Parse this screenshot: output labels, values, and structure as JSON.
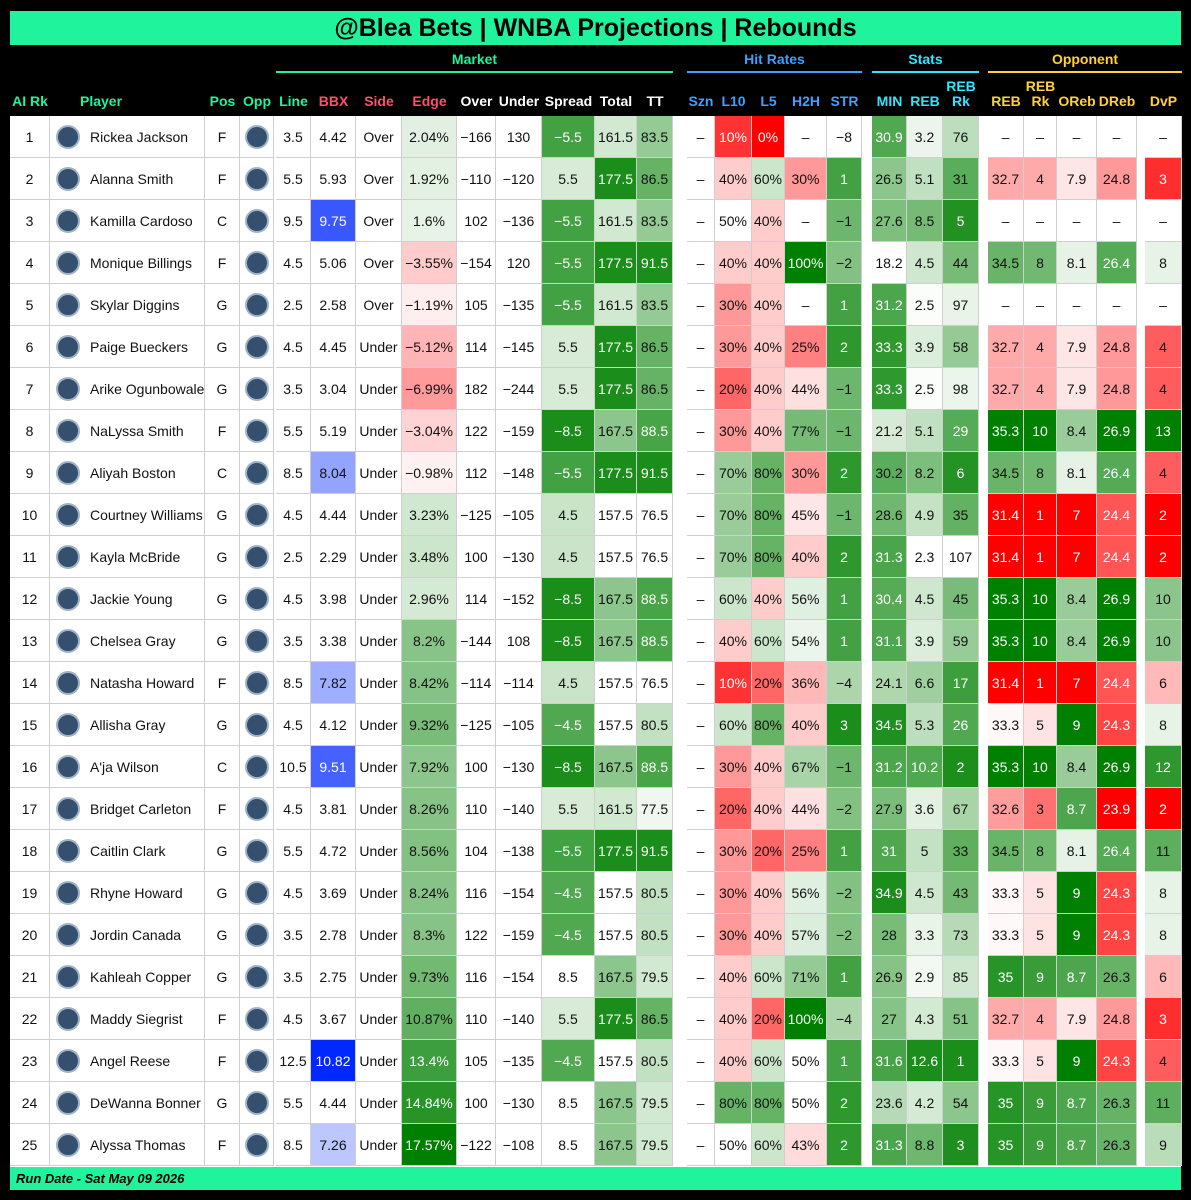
{
  "header": {
    "title": "@Blea Bets | WNBA Projections | Rebounds"
  },
  "table": {
    "groups": [
      "Market",
      "Hit Rates",
      "Stats",
      "Opponent"
    ],
    "columns": [
      "AI Rk",
      "Player",
      "Pos",
      "Opp",
      "Line",
      "BBX",
      "Side",
      "Edge",
      "Over",
      "Under",
      "Spread",
      "Total",
      "TT",
      "Szn",
      "L10",
      "L5",
      "H2H",
      "STR",
      "MIN",
      "REB",
      "REB Rk",
      "REB",
      "REB Rk",
      "OReb",
      "DReb",
      "DvP"
    ],
    "rows": [
      [
        1,
        "Rickea Jackson",
        "F",
        null,
        3.5,
        4.42,
        "Over",
        "2.04%",
        "−166",
        130,
        "−5.5",
        161.5,
        83.5,
        "–",
        "10%",
        "0%",
        "–",
        "−8",
        30.9,
        3.2,
        76,
        "–",
        "–",
        "–",
        "–",
        "–"
      ],
      [
        2,
        "Alanna Smith",
        "F",
        null,
        5.5,
        5.93,
        "Over",
        "1.92%",
        "−110",
        "−120",
        5.5,
        177.5,
        86.5,
        "–",
        "40%",
        "60%",
        "30%",
        1,
        26.5,
        5.1,
        31,
        32.7,
        4,
        7.9,
        24.8,
        3
      ],
      [
        3,
        "Kamilla Cardoso",
        "C",
        null,
        9.5,
        9.75,
        "Over",
        "1.6%",
        102,
        "−136",
        "−5.5",
        161.5,
        83.5,
        "–",
        "50%",
        "40%",
        "–",
        "−1",
        27.6,
        8.5,
        5,
        "–",
        "–",
        "–",
        "–",
        "–"
      ],
      [
        4,
        "Monique Billings",
        "F",
        null,
        4.5,
        5.06,
        "Over",
        "−3.55%",
        "−154",
        120,
        "−5.5",
        177.5,
        91.5,
        "–",
        "40%",
        "40%",
        "100%",
        "−2",
        18.2,
        4.5,
        44,
        34.5,
        8,
        8.1,
        26.4,
        8
      ],
      [
        5,
        "Skylar Diggins",
        "G",
        null,
        2.5,
        2.58,
        "Over",
        "−1.19%",
        105,
        "−135",
        "−5.5",
        161.5,
        83.5,
        "–",
        "30%",
        "40%",
        "–",
        1,
        31.2,
        2.5,
        97,
        "–",
        "–",
        "–",
        "–",
        "–"
      ],
      [
        6,
        "Paige Bueckers",
        "G",
        null,
        4.5,
        4.45,
        "Under",
        "−5.12%",
        114,
        "−145",
        5.5,
        177.5,
        86.5,
        "–",
        "30%",
        "40%",
        "25%",
        2,
        33.3,
        3.9,
        58,
        32.7,
        4,
        7.9,
        24.8,
        4
      ],
      [
        7,
        "Arike Ogunbowale",
        "G",
        null,
        3.5,
        3.04,
        "Under",
        "−6.99%",
        182,
        "−244",
        5.5,
        177.5,
        86.5,
        "–",
        "20%",
        "40%",
        "44%",
        "−1",
        33.3,
        2.5,
        98,
        32.7,
        4,
        7.9,
        24.8,
        4
      ],
      [
        8,
        "NaLyssa Smith",
        "F",
        null,
        5.5,
        5.19,
        "Under",
        "−3.04%",
        122,
        "−159",
        "−8.5",
        167.5,
        88.5,
        "–",
        "30%",
        "40%",
        "77%",
        "−1",
        21.2,
        5.1,
        29,
        35.3,
        10,
        8.4,
        26.9,
        13
      ],
      [
        9,
        "Aliyah Boston",
        "C",
        null,
        8.5,
        8.04,
        "Under",
        "−0.98%",
        112,
        "−148",
        "−5.5",
        177.5,
        91.5,
        "–",
        "70%",
        "80%",
        "30%",
        2,
        30.2,
        8.2,
        6,
        34.5,
        8,
        8.1,
        26.4,
        4
      ],
      [
        10,
        "Courtney Williams",
        "G",
        null,
        4.5,
        4.44,
        "Under",
        "3.23%",
        "−125",
        "−105",
        4.5,
        157.5,
        76.5,
        "–",
        "70%",
        "80%",
        "45%",
        "−1",
        28.6,
        4.9,
        35,
        31.4,
        1,
        7,
        24.4,
        2
      ],
      [
        11,
        "Kayla McBride",
        "G",
        null,
        2.5,
        2.29,
        "Under",
        "3.48%",
        100,
        "−130",
        4.5,
        157.5,
        76.5,
        "–",
        "70%",
        "80%",
        "40%",
        2,
        31.3,
        2.3,
        107,
        31.4,
        1,
        7,
        24.4,
        2
      ],
      [
        12,
        "Jackie Young",
        "G",
        null,
        4.5,
        3.98,
        "Under",
        "2.96%",
        114,
        "−152",
        "−8.5",
        167.5,
        88.5,
        "–",
        "60%",
        "40%",
        "56%",
        1,
        30.4,
        4.5,
        45,
        35.3,
        10,
        8.4,
        26.9,
        10
      ],
      [
        13,
        "Chelsea Gray",
        "G",
        null,
        3.5,
        3.38,
        "Under",
        "8.2%",
        "−144",
        108,
        "−8.5",
        167.5,
        88.5,
        "–",
        "40%",
        "60%",
        "54%",
        1,
        31.1,
        3.9,
        59,
        35.3,
        10,
        8.4,
        26.9,
        10
      ],
      [
        14,
        "Natasha Howard",
        "F",
        null,
        8.5,
        7.82,
        "Under",
        "8.42%",
        "−114",
        "−114",
        4.5,
        157.5,
        76.5,
        "–",
        "10%",
        "20%",
        "36%",
        "−4",
        24.1,
        6.6,
        17,
        31.4,
        1,
        7,
        24.4,
        6
      ],
      [
        15,
        "Allisha Gray",
        "G",
        null,
        4.5,
        4.12,
        "Under",
        "9.32%",
        "−125",
        "−105",
        "−4.5",
        157.5,
        80.5,
        "–",
        "60%",
        "80%",
        "40%",
        3,
        34.5,
        5.3,
        26,
        33.3,
        5,
        9,
        24.3,
        8
      ],
      [
        16,
        "A'ja Wilson",
        "C",
        null,
        10.5,
        9.51,
        "Under",
        "7.92%",
        100,
        "−130",
        "−8.5",
        167.5,
        88.5,
        "–",
        "30%",
        "40%",
        "67%",
        "−1",
        31.2,
        10.2,
        2,
        35.3,
        10,
        8.4,
        26.9,
        12
      ],
      [
        17,
        "Bridget Carleton",
        "F",
        null,
        4.5,
        3.81,
        "Under",
        "8.26%",
        110,
        "−140",
        5.5,
        161.5,
        77.5,
        "–",
        "20%",
        "40%",
        "44%",
        "−2",
        27.9,
        3.6,
        67,
        32.6,
        3,
        8.7,
        23.9,
        2
      ],
      [
        18,
        "Caitlin Clark",
        "G",
        null,
        5.5,
        4.72,
        "Under",
        "8.56%",
        104,
        "−138",
        "−5.5",
        177.5,
        91.5,
        "–",
        "30%",
        "20%",
        "25%",
        1,
        31,
        5,
        33,
        34.5,
        8,
        8.1,
        26.4,
        11
      ],
      [
        19,
        "Rhyne Howard",
        "G",
        null,
        4.5,
        3.69,
        "Under",
        "8.24%",
        116,
        "−154",
        "−4.5",
        157.5,
        80.5,
        "–",
        "30%",
        "40%",
        "56%",
        "−2",
        34.9,
        4.5,
        43,
        33.3,
        5,
        9,
        24.3,
        8
      ],
      [
        20,
        "Jordin Canada",
        "G",
        null,
        3.5,
        2.78,
        "Under",
        "8.3%",
        122,
        "−159",
        "−4.5",
        157.5,
        80.5,
        "–",
        "30%",
        "40%",
        "57%",
        "−2",
        28,
        3.3,
        73,
        33.3,
        5,
        9,
        24.3,
        8
      ],
      [
        21,
        "Kahleah Copper",
        "G",
        null,
        3.5,
        2.75,
        "Under",
        "9.73%",
        116,
        "−154",
        8.5,
        167.5,
        79.5,
        "–",
        "40%",
        "60%",
        "71%",
        1,
        26.9,
        2.9,
        85,
        35,
        9,
        8.7,
        26.3,
        6
      ],
      [
        22,
        "Maddy Siegrist",
        "F",
        null,
        4.5,
        3.67,
        "Under",
        "10.87%",
        110,
        "−140",
        5.5,
        177.5,
        86.5,
        "–",
        "40%",
        "20%",
        "100%",
        "−4",
        27,
        4.3,
        51,
        32.7,
        4,
        7.9,
        24.8,
        3
      ],
      [
        23,
        "Angel Reese",
        "F",
        null,
        12.5,
        10.82,
        "Under",
        "13.4%",
        105,
        "−135",
        "−4.5",
        157.5,
        80.5,
        "–",
        "40%",
        "60%",
        "50%",
        1,
        31.6,
        12.6,
        1,
        33.3,
        5,
        9,
        24.3,
        4
      ],
      [
        24,
        "DeWanna Bonner",
        "G",
        null,
        5.5,
        4.44,
        "Under",
        "14.84%",
        100,
        "−130",
        8.5,
        167.5,
        79.5,
        "–",
        "80%",
        "80%",
        "50%",
        2,
        23.6,
        4.2,
        54,
        35,
        9,
        8.7,
        26.3,
        11
      ],
      [
        25,
        "Alyssa Thomas",
        "F",
        null,
        8.5,
        7.26,
        "Under",
        "17.57%",
        "−122",
        "−108",
        8.5,
        167.5,
        79.5,
        "–",
        "50%",
        "60%",
        "43%",
        2,
        31.3,
        8.8,
        3,
        35,
        9,
        8.7,
        26.3,
        9
      ]
    ]
  },
  "footer": {
    "text": "Run Date - Sat May 09 2026"
  }
}
